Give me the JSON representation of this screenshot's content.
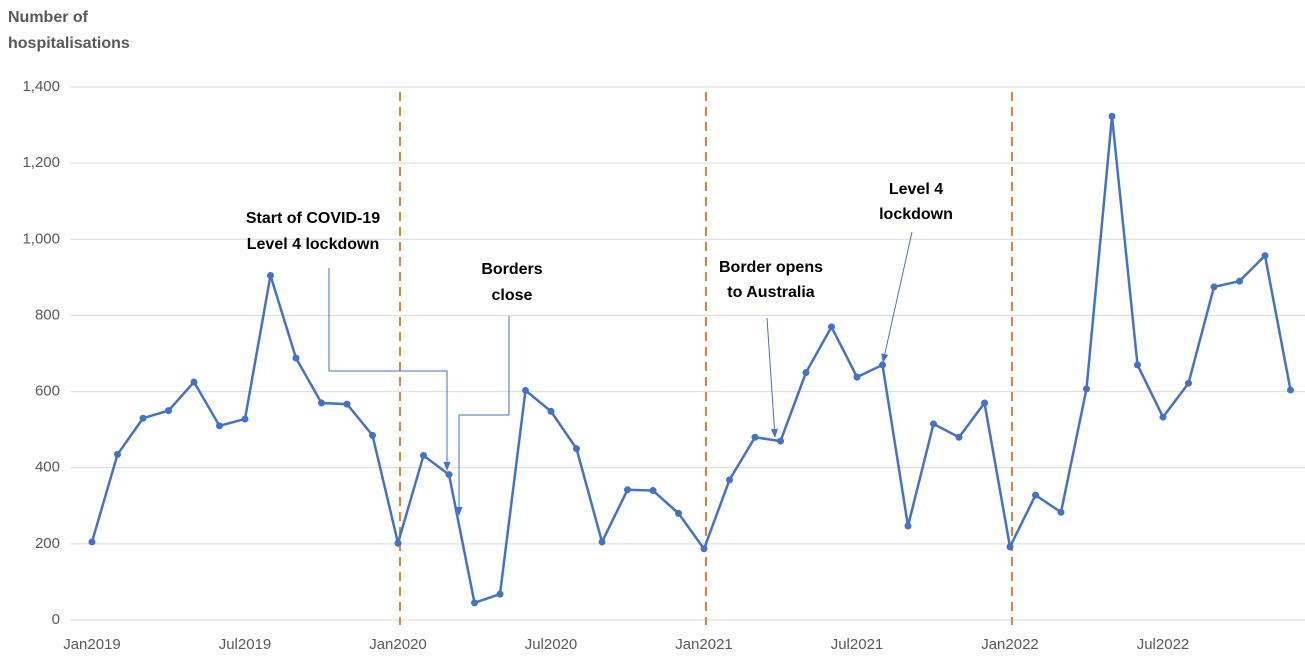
{
  "chart_data": {
    "type": "line",
    "ylabel": [
      "Number of",
      "hospitalisations"
    ],
    "categories": [
      "Jan2019",
      null,
      null,
      null,
      null,
      null,
      "Jul2019",
      null,
      null,
      null,
      null,
      null,
      "Jan2020",
      null,
      null,
      null,
      null,
      null,
      "Jul2020",
      null,
      null,
      null,
      null,
      null,
      "Jan2021",
      null,
      null,
      null,
      null,
      null,
      "Jul2021",
      null,
      null,
      null,
      null,
      null,
      "Jan2022",
      null,
      null,
      null,
      null,
      null,
      "Jul2022",
      null,
      null,
      null,
      null,
      null
    ],
    "series": [
      {
        "color": "#4472c4",
        "values": [
          205,
          435,
          530,
          550,
          625,
          510,
          528,
          905,
          688,
          570,
          567,
          485,
          202,
          432,
          382,
          45,
          68,
          603,
          548,
          450,
          205,
          342,
          340,
          280,
          187,
          368,
          480,
          470,
          650,
          770,
          638,
          670,
          247,
          515,
          480,
          570,
          192,
          328,
          283,
          607,
          1323,
          670,
          533,
          622,
          875,
          890,
          957,
          604
        ]
      }
    ],
    "ylim": [
      0,
      1400
    ],
    "yticks": [
      0,
      200,
      400,
      600,
      800,
      {
        "value": 1000,
        "label": "1,000"
      },
      {
        "value": 1200,
        "label": "1,200"
      },
      {
        "value": 1400,
        "label": "1,400"
      }
    ],
    "grid": true,
    "vlines": {
      "color": "#ed7d31",
      "at": [
        "Jan2020",
        "Jan2021",
        "Jan2022"
      ]
    },
    "annotations": [
      {
        "lines": [
          "Start of COVID-19",
          "Level 4 lockdown"
        ]
      },
      {
        "lines": [
          "Borders",
          "close"
        ]
      },
      {
        "lines": [
          "Border opens",
          "to Australia"
        ]
      },
      {
        "lines": [
          "Level 4",
          "lockdown"
        ]
      }
    ]
  }
}
